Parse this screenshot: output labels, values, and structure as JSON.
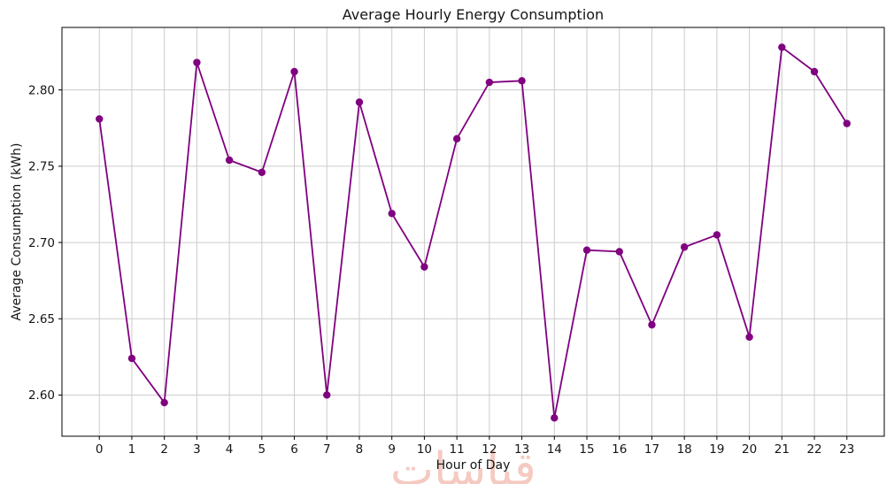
{
  "figure": {
    "background": "#ffffff"
  },
  "chart_data": {
    "type": "line",
    "title": "Average Hourly Energy Consumption",
    "xlabel": "Hour of Day",
    "ylabel": "Average Consumption (kWh)",
    "x": [
      0,
      1,
      2,
      3,
      4,
      5,
      6,
      7,
      8,
      9,
      10,
      11,
      12,
      13,
      14,
      15,
      16,
      17,
      18,
      19,
      20,
      21,
      22,
      23
    ],
    "values": [
      2.781,
      2.624,
      2.595,
      2.818,
      2.754,
      2.746,
      2.812,
      2.6,
      2.792,
      2.719,
      2.684,
      2.768,
      2.805,
      2.806,
      2.585,
      2.695,
      2.694,
      2.646,
      2.697,
      2.705,
      2.638,
      2.828,
      2.812,
      2.778
    ],
    "xtick_labels": [
      "0",
      "1",
      "2",
      "3",
      "4",
      "5",
      "6",
      "7",
      "8",
      "9",
      "10",
      "11",
      "12",
      "13",
      "14",
      "15",
      "16",
      "17",
      "18",
      "19",
      "20",
      "21",
      "22",
      "23"
    ],
    "ytick_labels": [
      "2.60",
      "2.65",
      "2.70",
      "2.75",
      "2.80"
    ],
    "ytick_values": [
      2.6,
      2.65,
      2.7,
      2.75,
      2.8
    ],
    "xlim": [
      -1.15,
      24.15
    ],
    "ylim": [
      2.573,
      2.841
    ],
    "grid": true,
    "legend_position": "none",
    "line_color": "#800080",
    "marker_color": "#800080",
    "grid_color": "#cccccc",
    "spine_color": "#000000",
    "tick_color": "#000000"
  },
  "watermark": {
    "text": "قياسات",
    "color": "#e8836e"
  }
}
